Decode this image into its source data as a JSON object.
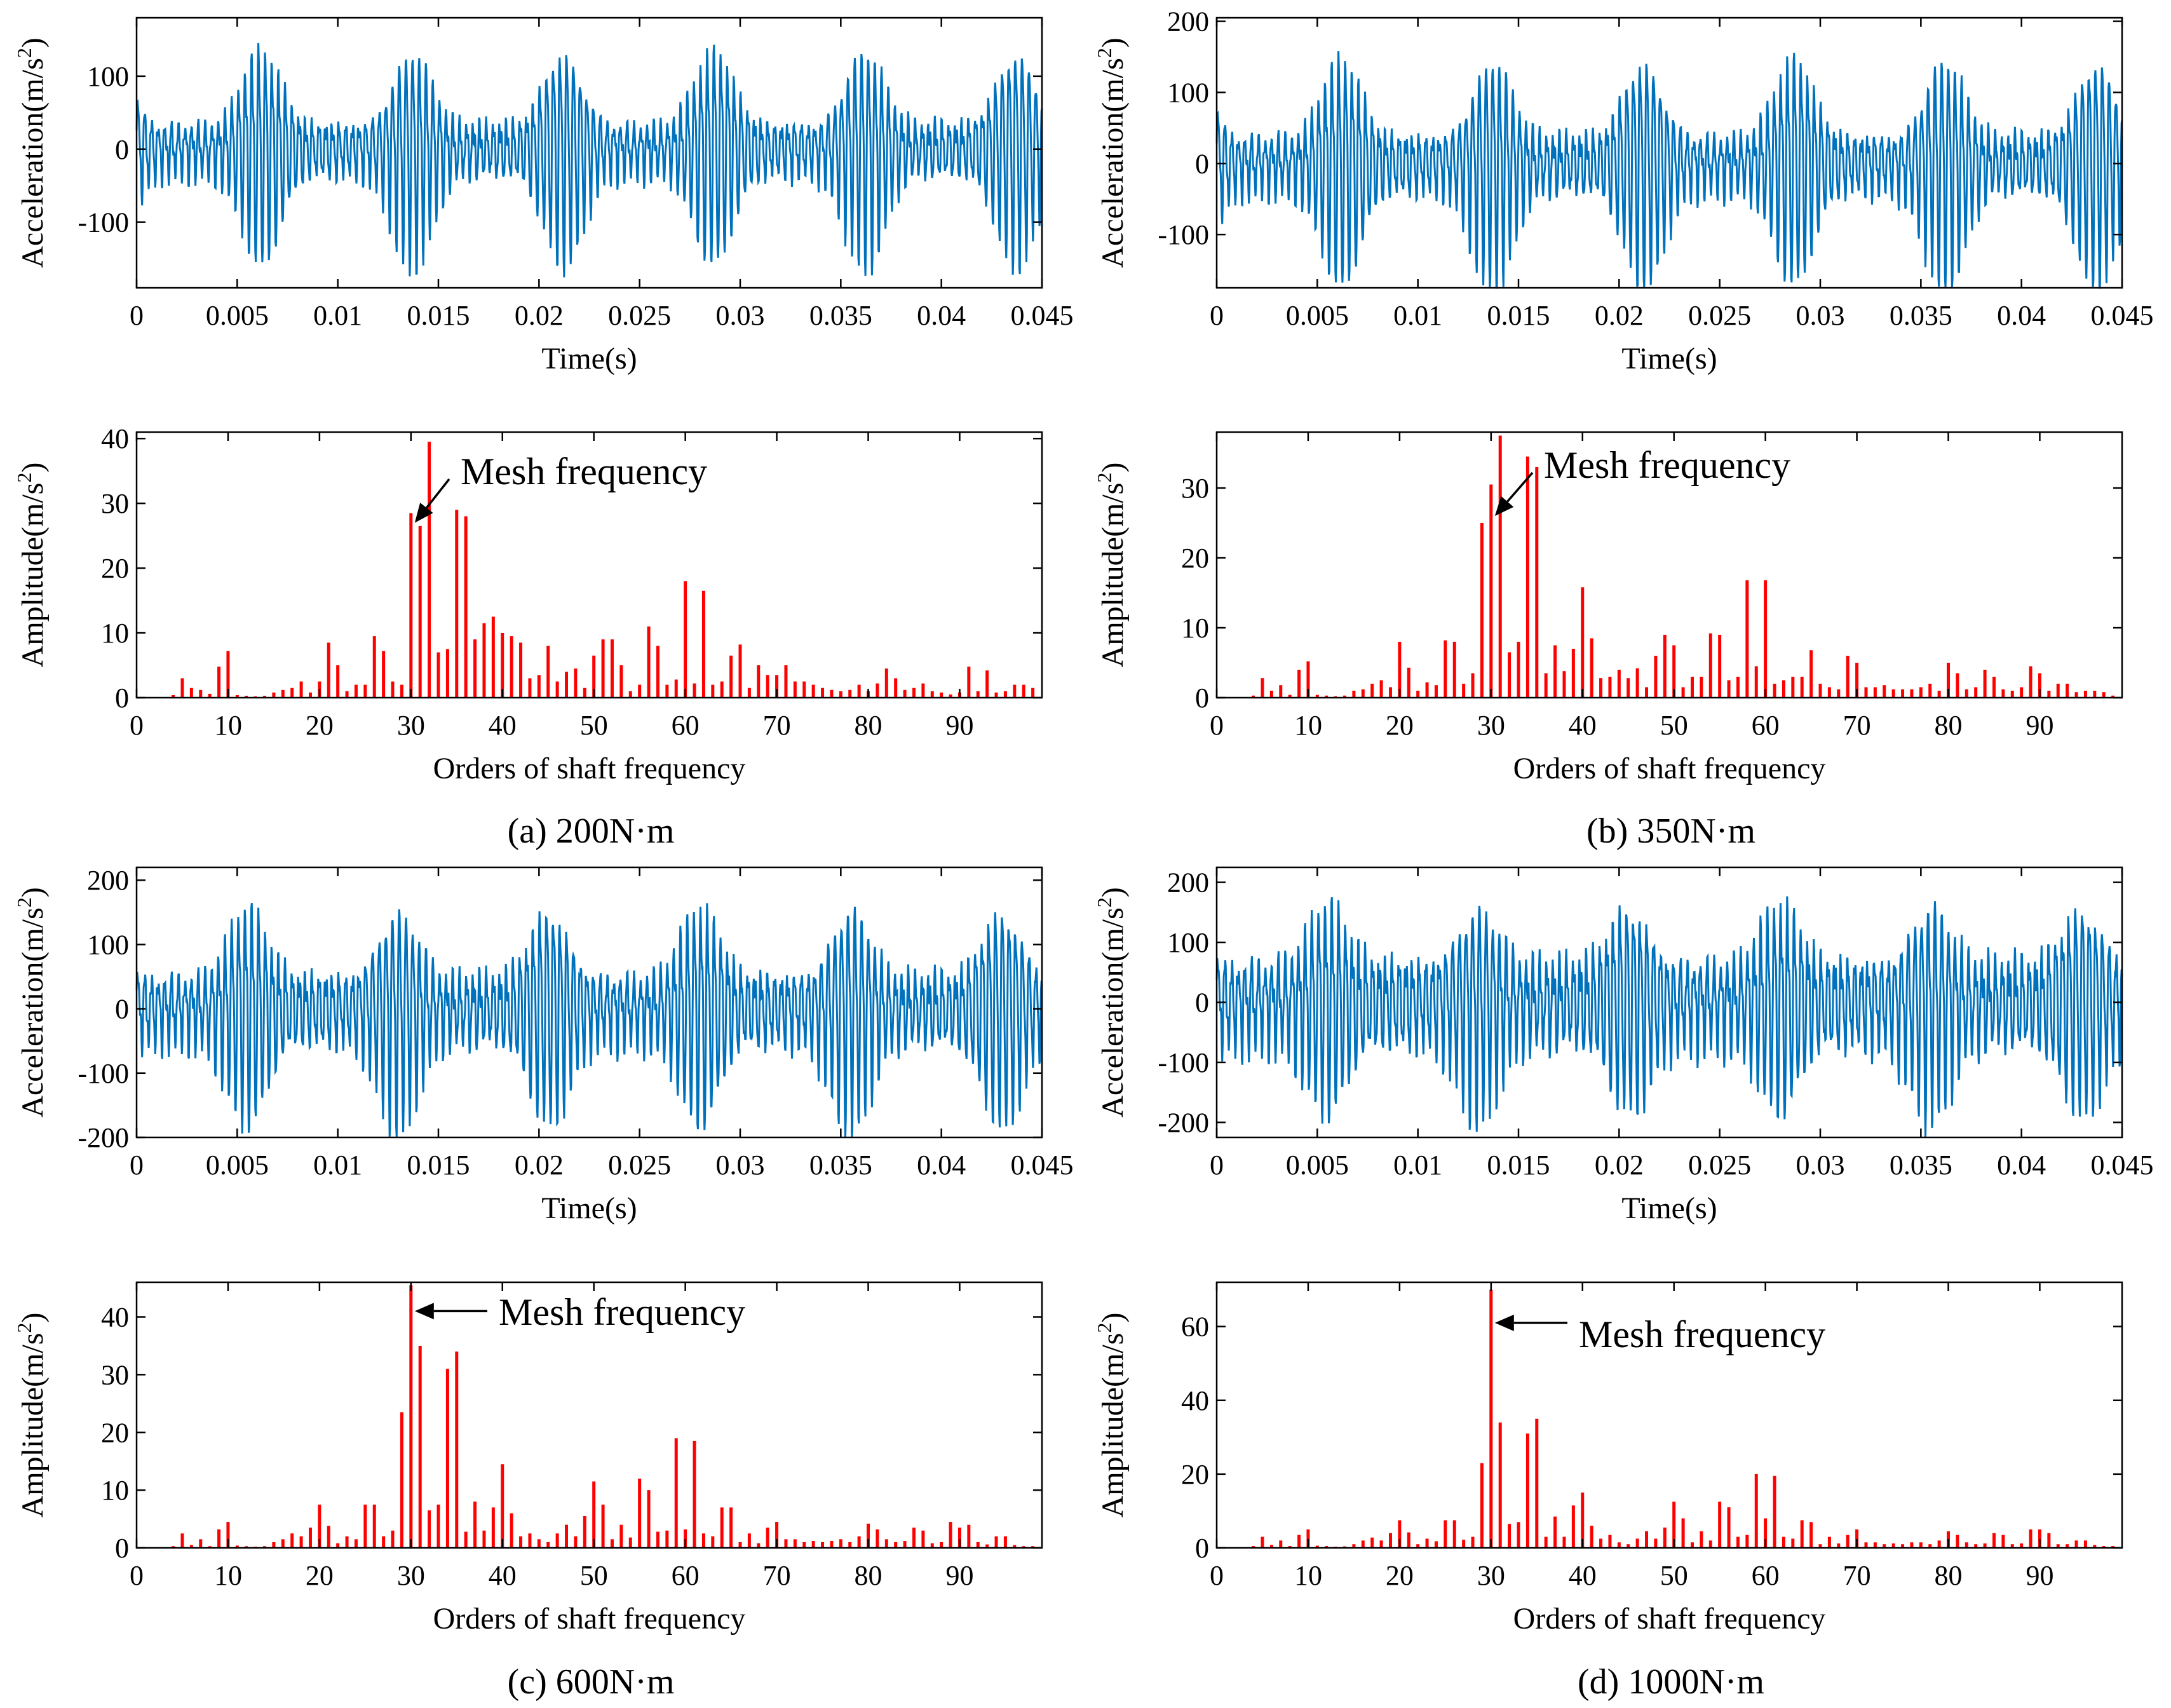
{
  "captions": [
    "(a) 200N·m",
    "(b) 350N·m",
    "(c) 600N·m",
    "(d) 1000N·m"
  ],
  "colors": {
    "time_series": "#0072BD",
    "spectrum": "#FF0000",
    "axes": "#000000"
  },
  "chart_data": [
    {
      "panel": "a",
      "type": "line",
      "ylabel_main": "Acceleration(m/s",
      "ylabel_sup": "2",
      "ylabel_end": ")",
      "xlabel": "Time(s)",
      "xlim": [
        0,
        0.045
      ],
      "ylim": [
        -190,
        180
      ],
      "xticks": [
        0,
        0.005,
        0.01,
        0.015,
        0.02,
        0.025,
        0.03,
        0.035,
        0.04,
        0.045
      ],
      "xtick_labels": [
        "0",
        "0.005",
        "0.01",
        "0.015",
        "0.02",
        "0.025",
        "0.03",
        "0.035",
        "0.04",
        "0.045"
      ],
      "yticks": [
        -100,
        0,
        100
      ],
      "ytick_labels": [
        "-100",
        "0",
        "100"
      ],
      "series": [
        {
          "color": "#0072BD",
          "peak_amplitude": 175,
          "baseline_amplitude": 40,
          "mesh_period_s": 0.000333,
          "envelope_period_s": 0.0075,
          "envelope_phase_s": 0.0062
        }
      ]
    },
    {
      "panel": "a",
      "type": "bar",
      "ylabel_main": "Amplitude(m/s",
      "ylabel_sup": "2",
      "ylabel_end": ")",
      "xlabel": "Orders of shaft frequency",
      "xlim": [
        0,
        99
      ],
      "ylim": [
        0,
        41
      ],
      "xticks": [
        0,
        10,
        20,
        30,
        40,
        50,
        60,
        70,
        80,
        90
      ],
      "xtick_labels": [
        "0",
        "10",
        "20",
        "30",
        "40",
        "50",
        "60",
        "70",
        "80",
        "90"
      ],
      "yticks": [
        0,
        10,
        20,
        30,
        40
      ],
      "ytick_labels": [
        "0",
        "10",
        "20",
        "30",
        "40"
      ],
      "annotation": {
        "text": "Mesh frequency",
        "x": 30,
        "y": 27
      },
      "x": [
        4,
        5,
        6,
        7,
        8,
        9,
        10,
        11,
        12,
        13,
        14,
        15,
        16,
        17,
        18,
        19,
        20,
        21,
        22,
        23,
        24,
        25,
        26,
        27,
        28,
        29,
        30,
        31,
        32,
        33,
        34,
        35,
        36,
        37,
        38,
        39,
        40,
        41,
        42,
        43,
        44,
        45,
        46,
        47,
        48,
        49,
        50,
        51,
        52,
        53,
        54,
        55,
        56,
        57,
        58,
        59,
        60,
        61,
        62,
        63,
        64,
        65,
        66,
        67,
        68,
        69,
        70,
        71,
        72,
        73,
        74,
        75,
        76,
        77,
        78,
        79,
        80,
        81,
        82,
        83,
        84,
        85,
        86,
        87,
        88,
        89,
        90,
        91,
        92,
        93,
        94,
        95,
        96,
        97,
        98
      ],
      "values": [
        0.4,
        3,
        1.5,
        1.2,
        0.6,
        4.8,
        7.2,
        0.4,
        0.3,
        0.2,
        0.3,
        0.8,
        1.2,
        1.5,
        2.5,
        0.8,
        2.5,
        8.5,
        5,
        1,
        2,
        2,
        9.5,
        7.2,
        2.5,
        2,
        28.5,
        26.5,
        39.5,
        7,
        7.5,
        29,
        28,
        9,
        11.5,
        12.5,
        10,
        9.5,
        8.5,
        3,
        3.5,
        8,
        2.5,
        4,
        4.5,
        1.5,
        6.5,
        9,
        9,
        5,
        1,
        2,
        11,
        8,
        2,
        2.8,
        18,
        2.2,
        16.5,
        2,
        2.5,
        6.5,
        8.2,
        1.5,
        5,
        3.5,
        3.5,
        5,
        2.5,
        2.5,
        2,
        1.5,
        1.2,
        1,
        1.2,
        2,
        1,
        2.2,
        4.5,
        3,
        1.2,
        1.5,
        2.2,
        1,
        0.8,
        0.5,
        0.8,
        4.8,
        1,
        4.2,
        0.8,
        1,
        2,
        2,
        1.5
      ]
    },
    {
      "panel": "b",
      "type": "line",
      "ylabel_main": "Acceleration(m/s",
      "ylabel_sup": "2",
      "ylabel_end": ")",
      "xlabel": "Time(s)",
      "xlim": [
        0,
        0.045
      ],
      "ylim": [
        -175,
        205
      ],
      "xticks": [
        0,
        0.005,
        0.01,
        0.015,
        0.02,
        0.025,
        0.03,
        0.035,
        0.04,
        0.045
      ],
      "xtick_labels": [
        "0",
        "0.005",
        "0.01",
        "0.015",
        "0.02",
        "0.025",
        "0.03",
        "0.035",
        "0.04",
        "0.045"
      ],
      "yticks": [
        -100,
        0,
        100,
        200
      ],
      "ytick_labels": [
        "-100",
        "0",
        "100",
        "200"
      ],
      "series": [
        {
          "color": "#0072BD",
          "peak_amplitude": 190,
          "baseline_amplitude": 45,
          "mesh_period_s": 0.000333,
          "envelope_period_s": 0.0075,
          "envelope_phase_s": 0.0062
        }
      ]
    },
    {
      "panel": "b",
      "type": "bar",
      "ylabel_main": "Amplitude(m/s",
      "ylabel_sup": "2",
      "ylabel_end": ")",
      "xlabel": "Orders of shaft frequency",
      "xlim": [
        0,
        99
      ],
      "ylim": [
        0,
        38
      ],
      "xticks": [
        0,
        10,
        20,
        30,
        40,
        50,
        60,
        70,
        80,
        90
      ],
      "xtick_labels": [
        "0",
        "10",
        "20",
        "30",
        "40",
        "50",
        "60",
        "70",
        "80",
        "90"
      ],
      "yticks": [
        0,
        10,
        20,
        30
      ],
      "ytick_labels": [
        "0",
        "10",
        "20",
        "30"
      ],
      "annotation": {
        "text": "Mesh frequency",
        "x": 30,
        "y": 26
      },
      "x": [
        4,
        5,
        6,
        7,
        8,
        9,
        10,
        11,
        12,
        13,
        14,
        15,
        16,
        17,
        18,
        19,
        20,
        21,
        22,
        23,
        24,
        25,
        26,
        27,
        28,
        29,
        30,
        31,
        32,
        33,
        34,
        35,
        36,
        37,
        38,
        39,
        40,
        41,
        42,
        43,
        44,
        45,
        46,
        47,
        48,
        49,
        50,
        51,
        52,
        53,
        54,
        55,
        56,
        57,
        58,
        59,
        60,
        61,
        62,
        63,
        64,
        65,
        66,
        67,
        68,
        69,
        70,
        71,
        72,
        73,
        74,
        75,
        76,
        77,
        78,
        79,
        80,
        81,
        82,
        83,
        84,
        85,
        86,
        87,
        88,
        89,
        90,
        91,
        92,
        93,
        94,
        95,
        96,
        97,
        98
      ],
      "values": [
        0.3,
        2.8,
        1,
        1.8,
        0.4,
        4,
        5.2,
        0.4,
        0.3,
        0.2,
        0.3,
        1,
        1.2,
        2,
        2.5,
        1.5,
        8,
        4.3,
        1,
        2.2,
        1.8,
        8.2,
        8,
        2,
        3.5,
        25,
        30.5,
        37.5,
        6.5,
        8,
        34.5,
        33,
        3.5,
        7.5,
        3.8,
        7,
        15.8,
        8.5,
        2.8,
        3,
        4,
        2.8,
        4.2,
        1.5,
        6,
        9,
        7.5,
        1.5,
        3,
        3,
        9.2,
        9,
        2.5,
        3,
        16.8,
        4.5,
        16.8,
        2,
        2.5,
        3,
        3,
        6.8,
        2,
        1.5,
        1.2,
        6,
        5,
        1.5,
        1.5,
        1.8,
        1.2,
        1.2,
        1.2,
        1.5,
        2,
        1,
        5,
        3.5,
        1.2,
        1.5,
        4,
        3,
        1.2,
        1,
        1.5,
        4.5,
        3.5,
        1,
        2,
        2,
        0.8,
        1,
        1,
        0.8,
        0.3
      ]
    },
    {
      "panel": "c",
      "type": "line",
      "ylabel_main": "Acceleration(m/s",
      "ylabel_sup": "2",
      "ylabel_end": ")",
      "xlabel": "Time(s)",
      "xlim": [
        0,
        0.045
      ],
      "ylim": [
        -200,
        220
      ],
      "xticks": [
        0,
        0.005,
        0.01,
        0.015,
        0.02,
        0.025,
        0.03,
        0.035,
        0.04,
        0.045
      ],
      "xtick_labels": [
        "0",
        "0.005",
        "0.01",
        "0.015",
        "0.02",
        "0.025",
        "0.03",
        "0.035",
        "0.04",
        "0.045"
      ],
      "yticks": [
        -200,
        -100,
        0,
        100,
        200
      ],
      "ytick_labels": [
        "-200",
        "-100",
        "0",
        "100",
        "200"
      ],
      "series": [
        {
          "color": "#0072BD",
          "peak_amplitude": 200,
          "baseline_amplitude": 60,
          "mesh_period_s": 0.000333,
          "envelope_period_s": 0.0075,
          "envelope_phase_s": 0.0055
        }
      ]
    },
    {
      "panel": "c",
      "type": "bar",
      "ylabel_main": "Amplitude(m/s",
      "ylabel_sup": "2",
      "ylabel_end": ")",
      "xlabel": "Orders of shaft frequency",
      "xlim": [
        0,
        99
      ],
      "ylim": [
        0,
        46
      ],
      "xticks": [
        0,
        10,
        20,
        30,
        40,
        50,
        60,
        70,
        80,
        90
      ],
      "xtick_labels": [
        "0",
        "10",
        "20",
        "30",
        "40",
        "50",
        "60",
        "70",
        "80",
        "90"
      ],
      "yticks": [
        0,
        10,
        20,
        30,
        40
      ],
      "ytick_labels": [
        "0",
        "10",
        "20",
        "30",
        "40"
      ],
      "annotation": {
        "text": "Mesh frequency",
        "x": 30,
        "y": 41
      },
      "x": [
        4,
        5,
        6,
        7,
        8,
        9,
        10,
        11,
        12,
        13,
        14,
        15,
        16,
        17,
        18,
        19,
        20,
        21,
        22,
        23,
        24,
        25,
        26,
        27,
        28,
        29,
        30,
        31,
        32,
        33,
        34,
        35,
        36,
        37,
        38,
        39,
        40,
        41,
        42,
        43,
        44,
        45,
        46,
        47,
        48,
        49,
        50,
        51,
        52,
        53,
        54,
        55,
        56,
        57,
        58,
        59,
        60,
        61,
        62,
        63,
        64,
        65,
        66,
        67,
        68,
        69,
        70,
        71,
        72,
        73,
        74,
        75,
        76,
        77,
        78,
        79,
        80,
        81,
        82,
        83,
        84,
        85,
        86,
        87,
        88,
        89,
        90,
        91,
        92,
        93,
        94,
        95,
        96,
        97,
        98
      ],
      "values": [
        0.3,
        2.5,
        0.5,
        1.5,
        0.3,
        3.2,
        4.5,
        0.4,
        0.3,
        0.2,
        0.3,
        1,
        1.5,
        2.5,
        2,
        3.5,
        7.5,
        3.8,
        0.8,
        2,
        1.5,
        7.5,
        7.5,
        2,
        3,
        23.5,
        45.5,
        35,
        6.5,
        7.5,
        31,
        34,
        2.8,
        8,
        3,
        7,
        14.5,
        6,
        2,
        2.5,
        1.5,
        1,
        2.5,
        4,
        2,
        5.5,
        11.5,
        7.5,
        1.5,
        4,
        1.8,
        12,
        10,
        2.8,
        3,
        19,
        3.2,
        18.5,
        2.5,
        2,
        7,
        7,
        1,
        2.5,
        0.8,
        3.5,
        4.5,
        1.5,
        1.5,
        1,
        1.2,
        1,
        1.2,
        1.5,
        1,
        2,
        4.2,
        3.2,
        1.5,
        1,
        1.2,
        3.5,
        3,
        0.8,
        1,
        4.5,
        3.5,
        4,
        1,
        0.6,
        2,
        2,
        0.5,
        0.3,
        0.3
      ]
    },
    {
      "panel": "d",
      "type": "line",
      "ylabel_main": "Acceleration(m/s",
      "ylabel_sup": "2",
      "ylabel_end": ")",
      "xlabel": "Time(s)",
      "xlim": [
        0,
        0.045
      ],
      "ylim": [
        -225,
        225
      ],
      "xticks": [
        0,
        0.005,
        0.01,
        0.015,
        0.02,
        0.025,
        0.03,
        0.035,
        0.04,
        0.045
      ],
      "xtick_labels": [
        "0",
        "0.005",
        "0.01",
        "0.015",
        "0.02",
        "0.025",
        "0.03",
        "0.035",
        "0.04",
        "0.045"
      ],
      "yticks": [
        -200,
        -100,
        0,
        100,
        200
      ],
      "ytick_labels": [
        "-200",
        "-100",
        "0",
        "100",
        "200"
      ],
      "series": [
        {
          "color": "#0072BD",
          "peak_amplitude": 205,
          "baseline_amplitude": 80,
          "mesh_period_s": 0.000333,
          "envelope_period_s": 0.0075,
          "envelope_phase_s": 0.0055
        }
      ]
    },
    {
      "panel": "d",
      "type": "bar",
      "ylabel_main": "Amplitude(m/s",
      "ylabel_sup": "2",
      "ylabel_end": ")",
      "xlabel": "Orders of shaft frequency",
      "xlim": [
        0,
        99
      ],
      "ylim": [
        0,
        72
      ],
      "xticks": [
        0,
        10,
        20,
        30,
        40,
        50,
        60,
        70,
        80,
        90
      ],
      "xtick_labels": [
        "0",
        "10",
        "20",
        "30",
        "40",
        "50",
        "60",
        "70",
        "80",
        "90"
      ],
      "yticks": [
        0,
        20,
        40,
        60
      ],
      "ytick_labels": [
        "0",
        "20",
        "40",
        "60"
      ],
      "annotation": {
        "text": "Mesh frequency",
        "x": 30,
        "y": 61
      },
      "x": [
        4,
        5,
        6,
        7,
        8,
        9,
        10,
        11,
        12,
        13,
        14,
        15,
        16,
        17,
        18,
        19,
        20,
        21,
        22,
        23,
        24,
        25,
        26,
        27,
        28,
        29,
        30,
        31,
        32,
        33,
        34,
        35,
        36,
        37,
        38,
        39,
        40,
        41,
        42,
        43,
        44,
        45,
        46,
        47,
        48,
        49,
        50,
        51,
        52,
        53,
        54,
        55,
        56,
        57,
        58,
        59,
        60,
        61,
        62,
        63,
        64,
        65,
        66,
        67,
        68,
        69,
        70,
        71,
        72,
        73,
        74,
        75,
        76,
        77,
        78,
        79,
        80,
        81,
        82,
        83,
        84,
        85,
        86,
        87,
        88,
        89,
        90,
        91,
        92,
        93,
        94,
        95,
        96,
        97,
        98
      ],
      "values": [
        0.5,
        3,
        0.8,
        2,
        0.5,
        3.5,
        5,
        0.6,
        0.5,
        0.3,
        0.4,
        1,
        2,
        2.8,
        2,
        4,
        7.5,
        4.2,
        1,
        2.5,
        1.8,
        7.5,
        7.5,
        2.2,
        3,
        23,
        70,
        34,
        6.5,
        7,
        31,
        35,
        3,
        8.5,
        3,
        11.5,
        15,
        6,
        2.5,
        3.5,
        1.5,
        1,
        2.5,
        4.5,
        2.5,
        5.5,
        12.5,
        8,
        1.5,
        4.5,
        2,
        12.5,
        11,
        3,
        3.5,
        20,
        8,
        19.5,
        3,
        2.5,
        7.5,
        7,
        1,
        3,
        1.2,
        3.5,
        5,
        1.5,
        1.5,
        1,
        1.2,
        1,
        1.5,
        1.5,
        1,
        2,
        4.5,
        3.5,
        1.5,
        1,
        1.2,
        4,
        3.5,
        1,
        1.2,
        5,
        5,
        4,
        1,
        1,
        2,
        2,
        0.8,
        0.5,
        0.5
      ]
    }
  ]
}
